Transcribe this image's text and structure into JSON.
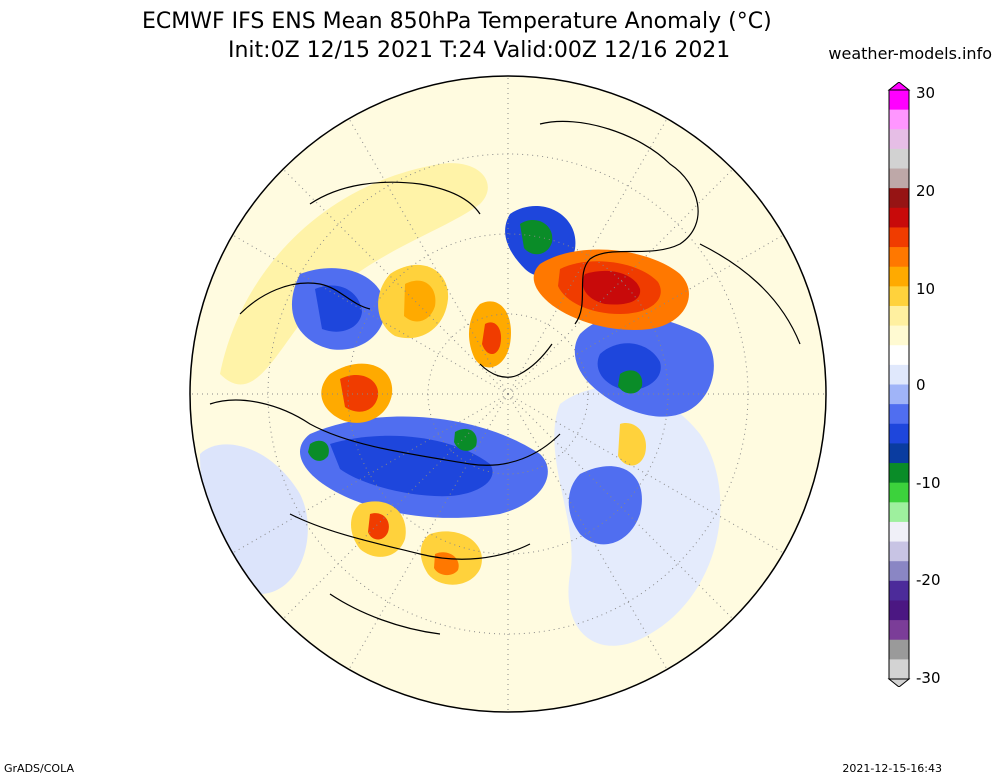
{
  "header": {
    "title_line_1": "ECMWF IFS ENS Mean 850hPa Temperature Anomaly (°C)",
    "title_line_2": "Init:0Z 12/15 2021  T:24 Valid:00Z 12/16 2021",
    "source": "weather-models.info"
  },
  "footer": {
    "left": "GrADS/COLA",
    "right": "2021-12-15-16:43"
  },
  "colorbar": {
    "ticks": [
      "30",
      "20",
      "10",
      "0",
      "-10",
      "-20",
      "-30"
    ],
    "min": -30,
    "max": 30,
    "colors": [
      "#d3d3d3",
      "#9a9a9a",
      "#7b3d98",
      "#4b1782",
      "#4c2b9a",
      "#8a86c4",
      "#c8c4e4",
      "#f0f0f8",
      "#9ef09e",
      "#3cd23c",
      "#0a8c28",
      "#0a3ca0",
      "#1e46dc",
      "#506ef0",
      "#a0b4f8",
      "#e0e8fc",
      "#ffffff",
      "#fffad2",
      "#fff0a0",
      "#ffd23c",
      "#ffaa00",
      "#ff7800",
      "#f03c00",
      "#c80a0a",
      "#961414",
      "#bea8a8",
      "#d2d2d2",
      "#e6bee6",
      "#ff96ff",
      "#ff00ff"
    ]
  },
  "map": {
    "projection": "north polar stereographic",
    "background": "#fffbe0"
  }
}
